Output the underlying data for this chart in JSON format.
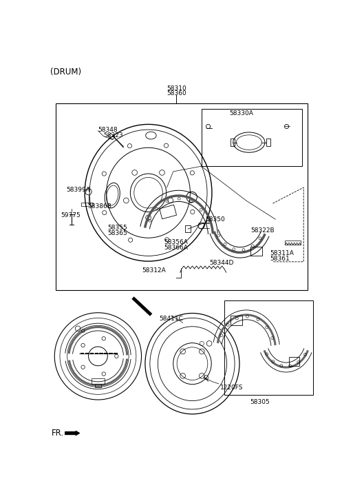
{
  "bg_color": "#ffffff",
  "line_color": "#000000",
  "fig_width": 5.13,
  "fig_height": 7.27,
  "dpi": 100,
  "labels": {
    "drum_label": "(DRUM)",
    "top_part1": "58310",
    "top_part2": "58360",
    "label_58330A": "58330A",
    "label_58348": "58348",
    "label_58323": "58323",
    "label_58399A": "58399A",
    "label_58386B": "58386B",
    "label_59775": "59775",
    "label_58355": "58355",
    "label_58365": "58365",
    "label_58356A": "58356A",
    "label_58366A": "58366A",
    "label_58312A": "58312A",
    "label_58344D": "58344D",
    "label_58350": "58350",
    "label_58322B": "58322B",
    "label_58311A": "58311A",
    "label_58361": "58361",
    "label_58411C": "58411C",
    "label_1220FS": "1220FS",
    "label_58305": "58305"
  },
  "font_size": 6.5,
  "font_size_title": 8.5
}
